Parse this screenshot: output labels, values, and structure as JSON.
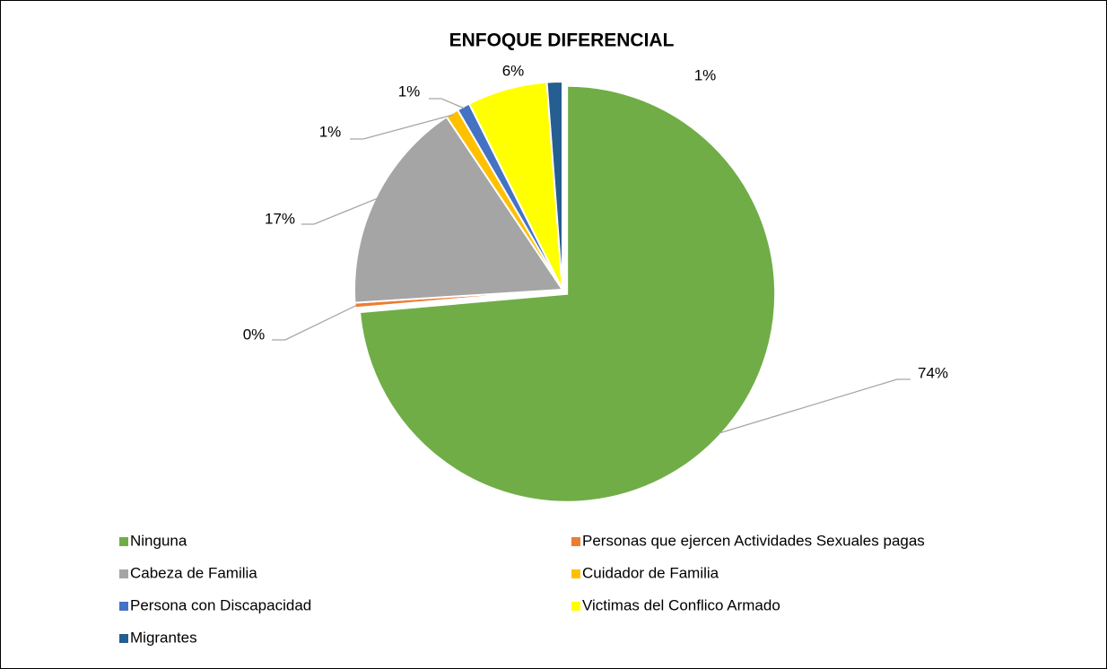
{
  "chart_data": {
    "type": "pie",
    "title": "ENFOQUE DIFERENCIAL",
    "categories": [
      "Ninguna",
      "Personas que ejercen Actividades Sexuales pagas",
      "Cabeza de Familia",
      "Cuidador de Familia",
      "Persona con Discapacidad",
      "Victimas del Conflico Armado",
      "Migrantes"
    ],
    "values": [
      73.6,
      0.4,
      16.6,
      1.0,
      1.0,
      6.2,
      1.2
    ],
    "value_labels": [
      "74%",
      "0%",
      "17%",
      "1%",
      "1%",
      "6%",
      "1%"
    ],
    "colors": [
      "#70ad47",
      "#ed7d31",
      "#a5a5a5",
      "#ffc000",
      "#4472c4",
      "#ffff00",
      "#255e91"
    ],
    "legend": "bottom"
  }
}
